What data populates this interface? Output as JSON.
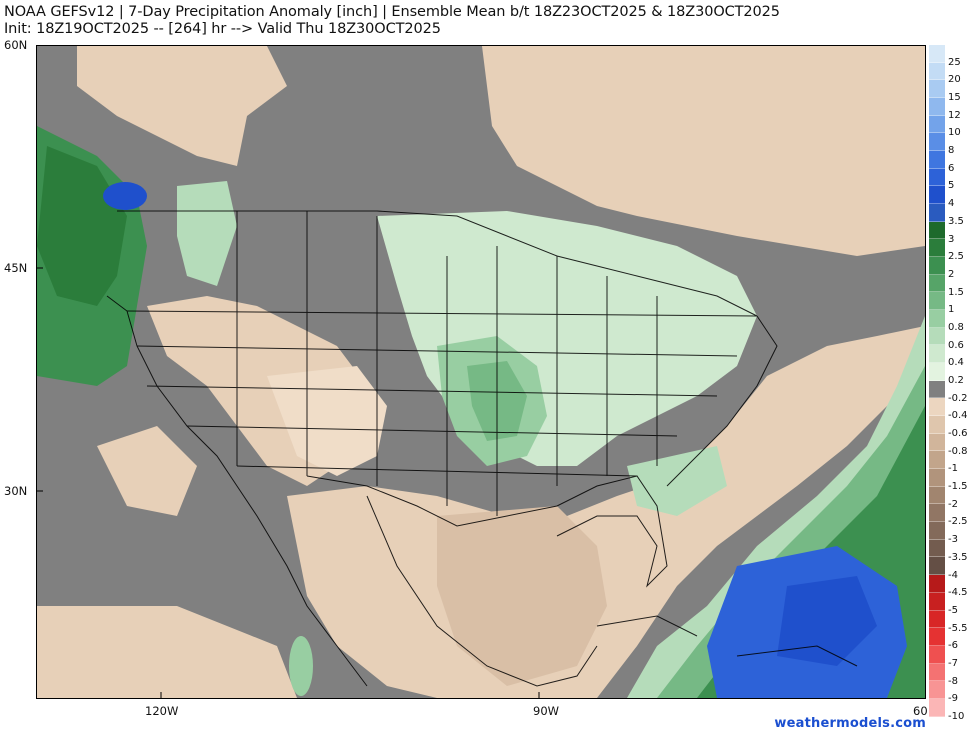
{
  "header": {
    "title_line1": "NOAA GEFSv12 | 7-Day Precipitation Anomaly [inch] | Ensemble Mean b/t 18Z23OCT2025 & 18Z30OCT2025",
    "title_line2": "Init: 18Z19OCT2025 -- [264] hr --> Valid Thu 18Z30OCT2025"
  },
  "axes": {
    "lat_labels": [
      "60N",
      "45N",
      "30N"
    ],
    "lon_labels": [
      "120W",
      "90W",
      "60"
    ]
  },
  "colorbar": {
    "labels": [
      "25",
      "20",
      "15",
      "12",
      "10",
      "8",
      "6",
      "5",
      "4",
      "3.5",
      "3",
      "2.5",
      "2",
      "1.5",
      "1",
      "0.8",
      "0.6",
      "0.4",
      "0.2",
      "-0.2",
      "-0.4",
      "-0.6",
      "-0.8",
      "-1",
      "-1.5",
      "-2",
      "-2.5",
      "-3",
      "-3.5",
      "-4",
      "-4.5",
      "-5",
      "-5.5",
      "-6",
      "-7",
      "-8",
      "-9",
      "-10"
    ],
    "colors": [
      "#d7e8f7",
      "#c3dcf5",
      "#a9cbf2",
      "#8fb8ee",
      "#73a3ea",
      "#5a8ee6",
      "#3f76e0",
      "#2d62d8",
      "#1f50cc",
      "#2a5bbf",
      "#1e6a2c",
      "#2b7d3b",
      "#3c9050",
      "#56a468",
      "#76b985",
      "#98cea2",
      "#b5dcba",
      "#cfe9cf",
      "#e3f3e0",
      "#808080",
      "#ecd6c0",
      "#dfc6ad",
      "#d1b59b",
      "#c2a58b",
      "#b1947c",
      "#a1856f",
      "#917664",
      "#836a5a",
      "#735c4f",
      "#644f45",
      "#b61a1a",
      "#c82020",
      "#d82626",
      "#e53232",
      "#ef5050",
      "#f47272",
      "#f89494",
      "#fbb6b6"
    ]
  },
  "credit": "weathermodels.com",
  "legend_colors": {
    "land_neutral": "#808080",
    "dry_anomaly": "#e7d0b8",
    "wet_anomaly_light": "#cfe9cf",
    "wet_anomaly_heavy": "#1f50cc"
  }
}
